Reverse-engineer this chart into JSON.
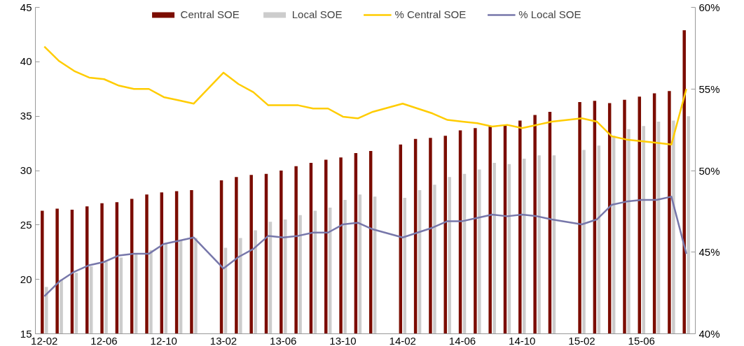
{
  "chart_data": {
    "type": "bar",
    "categories": [
      "12-02",
      null,
      null,
      null,
      "12-06",
      null,
      null,
      null,
      "12-10",
      null,
      null,
      null,
      "13-02",
      null,
      null,
      null,
      "13-06",
      null,
      null,
      null,
      "13-10",
      null,
      null,
      null,
      "14-02",
      null,
      null,
      null,
      "14-06",
      null,
      null,
      null,
      "14-10",
      null,
      null,
      null,
      "15-02",
      null,
      null,
      null,
      "15-06",
      null,
      null,
      null
    ],
    "series": [
      {
        "name": "Central SOE",
        "color": "#7b0c00",
        "values": [
          26.3,
          26.5,
          26.4,
          26.7,
          27.0,
          27.1,
          27.4,
          27.8,
          28.0,
          28.1,
          28.2,
          null,
          29.1,
          29.4,
          29.6,
          29.7,
          30.0,
          30.4,
          30.7,
          31.0,
          31.2,
          31.6,
          31.8,
          null,
          32.4,
          32.9,
          33.0,
          33.2,
          33.7,
          33.9,
          34.1,
          34.2,
          34.6,
          35.1,
          35.4,
          null,
          36.3,
          36.4,
          36.2,
          36.5,
          36.8,
          37.1,
          37.3,
          42.9
        ]
      },
      {
        "name": "Local SOE",
        "color": "#cccccc",
        "values": [
          19.3,
          20.0,
          20.6,
          21.2,
          21.6,
          22.0,
          22.4,
          22.7,
          23.3,
          23.6,
          23.8,
          null,
          22.9,
          23.8,
          24.5,
          25.3,
          25.5,
          25.9,
          26.3,
          26.6,
          27.3,
          27.8,
          27.6,
          null,
          27.5,
          28.2,
          28.7,
          29.4,
          29.7,
          30.1,
          30.7,
          30.6,
          31.1,
          31.4,
          31.4,
          null,
          31.9,
          32.3,
          33.2,
          33.8,
          34.1,
          34.5,
          34.6,
          35.0
        ]
      },
      {
        "name": "% Central SOE",
        "type": "line",
        "axis": "y2",
        "color": "#ffcc00",
        "values": [
          57.6,
          56.7,
          56.1,
          55.7,
          55.6,
          55.2,
          55.0,
          55.0,
          54.5,
          54.3,
          54.1,
          null,
          56.0,
          55.3,
          54.8,
          54.0,
          54.0,
          54.0,
          53.8,
          53.8,
          53.3,
          53.2,
          53.6,
          null,
          54.1,
          53.8,
          53.5,
          53.1,
          53.0,
          52.9,
          52.7,
          52.8,
          52.6,
          52.8,
          53.0,
          null,
          53.2,
          53.0,
          52.1,
          51.9,
          51.8,
          51.7,
          51.6,
          55.0
        ]
      },
      {
        "name": "% Local SOE",
        "type": "line",
        "axis": "y2",
        "color": "#7777aa",
        "values": [
          42.3,
          43.2,
          43.8,
          44.2,
          44.4,
          44.8,
          44.9,
          44.9,
          45.5,
          45.7,
          45.9,
          null,
          44.0,
          44.7,
          45.2,
          46.0,
          45.9,
          46.0,
          46.2,
          46.2,
          46.7,
          46.8,
          46.4,
          null,
          45.9,
          46.2,
          46.5,
          46.9,
          46.9,
          47.1,
          47.3,
          47.2,
          47.3,
          47.2,
          47.0,
          null,
          46.7,
          47.0,
          47.9,
          48.1,
          48.2,
          48.2,
          48.4,
          44.9
        ]
      }
    ],
    "ylim": [
      15,
      45
    ],
    "yticks": [
      15,
      20,
      25,
      30,
      35,
      40,
      45
    ],
    "y2lim": [
      40,
      60
    ],
    "y2ticks": [
      {
        "value": 40,
        "label": "40%"
      },
      {
        "value": 45,
        "label": "45%"
      },
      {
        "value": 50,
        "label": "50%"
      },
      {
        "value": 55,
        "label": "55%"
      },
      {
        "value": 60,
        "label": "60%"
      }
    ],
    "grid": false,
    "legend": "top",
    "line_style": "solid",
    "marker": "none"
  }
}
